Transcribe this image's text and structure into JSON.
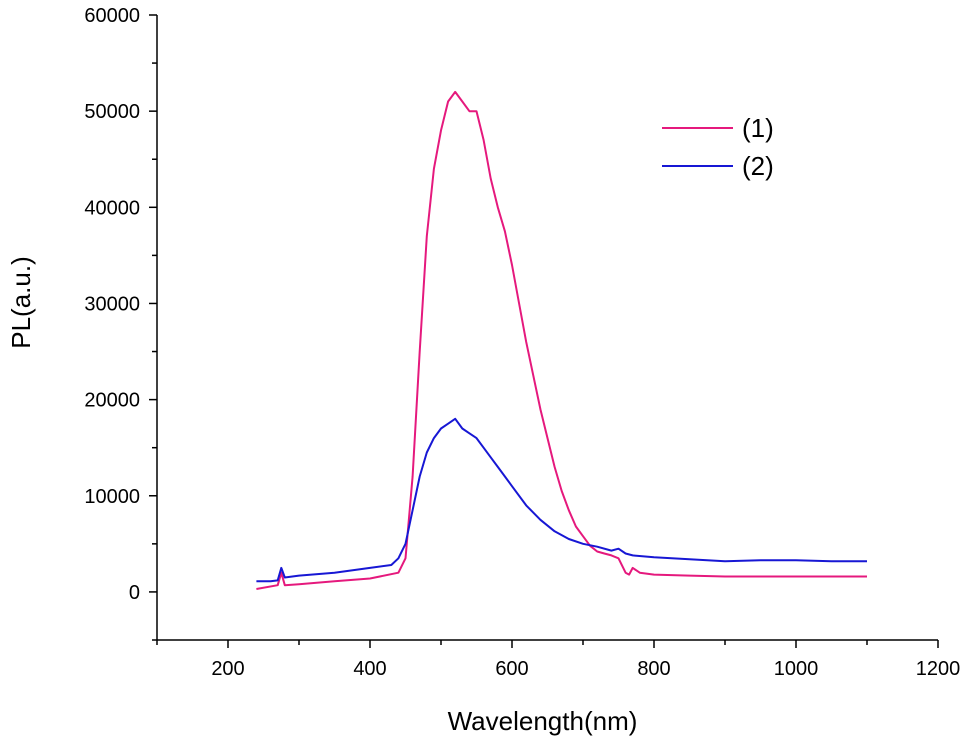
{
  "chart_data": {
    "type": "line",
    "xlabel": "Wavelength(nm)",
    "ylabel": "PL(a.u.)",
    "xlim": [
      100,
      1200
    ],
    "ylim": [
      -5000,
      60000
    ],
    "xticks": [
      200,
      400,
      600,
      800,
      1000,
      1200
    ],
    "yticks": [
      0,
      10000,
      20000,
      30000,
      40000,
      50000,
      60000
    ],
    "grid": false,
    "legend_position": "top-right",
    "series": [
      {
        "name": "(1)",
        "color": "#e5197d",
        "x": [
          240,
          270,
          275,
          280,
          300,
          350,
          400,
          440,
          450,
          460,
          470,
          480,
          490,
          500,
          510,
          520,
          530,
          540,
          550,
          560,
          570,
          580,
          590,
          600,
          610,
          620,
          630,
          640,
          650,
          660,
          670,
          680,
          690,
          700,
          710,
          720,
          730,
          740,
          750,
          760,
          765,
          770,
          780,
          800,
          850,
          900,
          950,
          1000,
          1050,
          1100
        ],
        "y": [
          300,
          700,
          2000,
          700,
          800,
          1100,
          1400,
          2000,
          3500,
          12000,
          25000,
          37000,
          44000,
          48000,
          51000,
          52000,
          51000,
          50000,
          50000,
          47000,
          43000,
          40000,
          37500,
          34000,
          30000,
          26000,
          22500,
          19000,
          16000,
          13000,
          10500,
          8500,
          6800,
          5800,
          4800,
          4200,
          4000,
          3800,
          3500,
          2000,
          1800,
          2500,
          2000,
          1800,
          1700,
          1600,
          1600,
          1600,
          1600,
          1600
        ]
      },
      {
        "name": "(2)",
        "color": "#1717d4",
        "x": [
          240,
          260,
          270,
          275,
          280,
          300,
          350,
          400,
          430,
          440,
          450,
          460,
          470,
          480,
          490,
          500,
          510,
          520,
          530,
          540,
          550,
          560,
          570,
          580,
          590,
          600,
          620,
          640,
          660,
          680,
          700,
          720,
          740,
          750,
          760,
          770,
          800,
          850,
          900,
          950,
          1000,
          1050,
          1100
        ],
        "y": [
          1100,
          1100,
          1200,
          2500,
          1500,
          1700,
          2000,
          2500,
          2800,
          3500,
          5000,
          8500,
          12000,
          14500,
          16000,
          17000,
          17500,
          18000,
          17000,
          16500,
          16000,
          15000,
          14000,
          13000,
          12000,
          11000,
          9000,
          7500,
          6300,
          5500,
          5000,
          4700,
          4300,
          4500,
          4000,
          3800,
          3600,
          3400,
          3200,
          3300,
          3300,
          3200,
          3200
        ]
      }
    ]
  }
}
